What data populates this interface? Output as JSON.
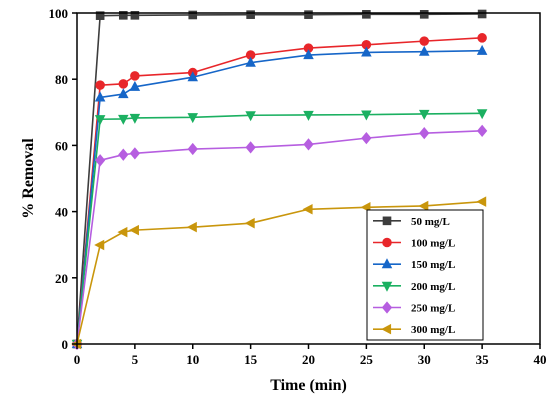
{
  "chart_data": {
    "type": "line",
    "title": "",
    "xlabel": "Time (min)",
    "ylabel": "% Removal",
    "xlim": [
      0,
      40
    ],
    "ylim": [
      0,
      100
    ],
    "xticks": [
      0,
      5,
      10,
      15,
      20,
      25,
      30,
      35,
      40
    ],
    "yticks": [
      0,
      20,
      40,
      60,
      80,
      100
    ],
    "grid": false,
    "legend_position": "bottom-right",
    "series": [
      {
        "name": "50 mg/L",
        "color": "#3d3d3d",
        "marker": "square",
        "x": [
          0,
          2,
          4,
          5,
          10,
          15,
          20,
          25,
          30,
          35
        ],
        "y": [
          0,
          99.2,
          99.3,
          99.3,
          99.4,
          99.5,
          99.5,
          99.6,
          99.6,
          99.7
        ]
      },
      {
        "name": "100 mg/L",
        "color": "#e8262a",
        "marker": "circle",
        "x": [
          0,
          2,
          4,
          5,
          10,
          15,
          20,
          25,
          30,
          35
        ],
        "y": [
          0,
          78.2,
          78.6,
          81.0,
          82.0,
          87.3,
          89.4,
          90.4,
          91.5,
          92.5
        ]
      },
      {
        "name": "150 mg/L",
        "color": "#1666c8",
        "marker": "triangle-up",
        "x": [
          0,
          2,
          4,
          5,
          10,
          15,
          20,
          25,
          30,
          35
        ],
        "y": [
          0,
          74.5,
          75.5,
          77.7,
          80.6,
          85.0,
          87.3,
          88.1,
          88.3,
          88.6
        ]
      },
      {
        "name": "200 mg/L",
        "color": "#1bb061",
        "marker": "triangle-down",
        "x": [
          0,
          2,
          4,
          5,
          10,
          15,
          20,
          25,
          30,
          35
        ],
        "y": [
          0,
          67.9,
          68.0,
          68.3,
          68.5,
          69.1,
          69.2,
          69.3,
          69.5,
          69.7
        ]
      },
      {
        "name": "250 mg/L",
        "color": "#b65ee0",
        "marker": "diamond",
        "x": [
          0,
          2,
          4,
          5,
          10,
          15,
          20,
          25,
          30,
          35
        ],
        "y": [
          0,
          55.5,
          57.2,
          57.6,
          58.9,
          59.4,
          60.3,
          62.2,
          63.7,
          64.4
        ]
      },
      {
        "name": "300 mg/L",
        "color": "#c9960c",
        "marker": "triangle-left",
        "x": [
          0,
          2,
          4,
          5,
          10,
          15,
          20,
          25,
          30,
          35
        ],
        "y": [
          0,
          29.9,
          33.8,
          34.4,
          35.3,
          36.5,
          40.7,
          41.3,
          41.7,
          43.0
        ]
      }
    ]
  }
}
